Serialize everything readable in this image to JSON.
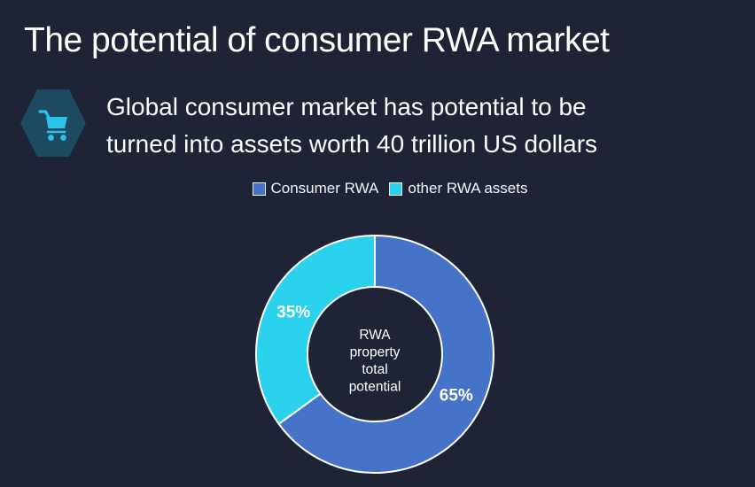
{
  "slide": {
    "background_color": "#1e2435",
    "title": "The potential of consumer RWA market"
  },
  "callout": {
    "line1": "Global consumer market has potential to be",
    "line2": "turned into assets worth 40 trillion US dollars",
    "icon": {
      "name": "shopping-cart-icon",
      "hexagon_color": "#1d4a60",
      "cart_color": "#2cc3ea"
    }
  },
  "chart_data": {
    "type": "pie",
    "donut": true,
    "start_angle_deg": 0,
    "direction": "clockwise",
    "slice_stroke_color": "#ffffff",
    "label_color": "#ffffff",
    "center_label_lines": [
      "RWA",
      "property",
      "total",
      "potential"
    ],
    "center_label_text": "RWA property total potential",
    "legend_position": "top",
    "series": [
      {
        "name": "Consumer RWA",
        "value": 65,
        "percent_label": "65%",
        "color": "#4573c8"
      },
      {
        "name": "other RWA assets",
        "value": 35,
        "percent_label": "35%",
        "color": "#2ad2ee"
      }
    ]
  }
}
